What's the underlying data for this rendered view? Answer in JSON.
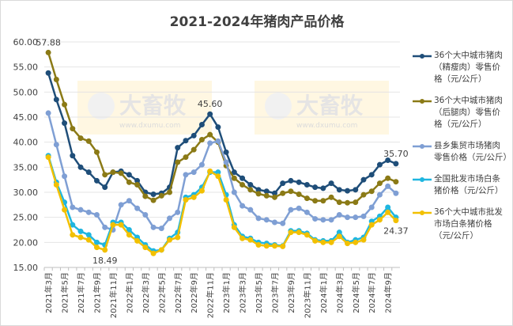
{
  "chart_data": {
    "type": "line",
    "title": "2021-2024年猪肉产品价格",
    "categories": [
      "2021年3月",
      null,
      "2021年5月",
      null,
      "2021年7月",
      null,
      "2021年9月",
      null,
      "2021年11月",
      null,
      "2022年1月",
      null,
      "2022年3月",
      null,
      "2022年5月",
      null,
      "2022年7月",
      null,
      "2022年9月",
      null,
      "2022年11月",
      null,
      "2023年1月",
      null,
      "2023年3月",
      null,
      "2023年5月",
      null,
      "2023年7月",
      null,
      "2023年9月",
      null,
      "2023年11月",
      null,
      "2024年1月",
      null,
      "2024年3月",
      null,
      "2024年5月",
      null,
      "2024年7月",
      null,
      "2024年9月",
      null
    ],
    "ylim": [
      15,
      60
    ],
    "yticks": [
      {
        "value": 15,
        "label": "15.00"
      },
      {
        "value": 20,
        "label": "20.00"
      },
      {
        "value": 25,
        "label": "25.00"
      },
      {
        "value": 30,
        "label": "30.00"
      },
      {
        "value": 35,
        "label": "35.00"
      },
      {
        "value": 40,
        "label": "40.00"
      },
      {
        "value": 45,
        "label": "45.00"
      },
      {
        "value": 50,
        "label": "50.00"
      },
      {
        "value": 55,
        "label": "55.00"
      },
      {
        "value": 60,
        "label": "60.00"
      }
    ],
    "grid": true,
    "series": [
      {
        "name": "36个大中城市猪肉（精瘦肉）零售价格（元/公斤）",
        "color": "#1f4e79",
        "values": [
          53.8,
          48.5,
          43.8,
          37.3,
          35.0,
          34.0,
          32.3,
          31.0,
          34.0,
          34.2,
          33.5,
          32.3,
          30.0,
          29.6,
          29.8,
          31.0,
          38.9,
          40.3,
          41.3,
          43.5,
          45.6,
          43.0,
          38.0,
          34.0,
          32.8,
          31.5,
          30.5,
          30.2,
          29.8,
          31.8,
          32.3,
          32.0,
          31.5,
          31.0,
          30.8,
          31.8,
          30.5,
          30.3,
          30.5,
          32.5,
          33.5,
          35.5,
          36.4,
          35.7
        ],
        "value_labels": [
          null,
          null,
          null,
          null,
          null,
          null,
          null,
          null,
          null,
          null,
          null,
          null,
          null,
          null,
          null,
          null,
          null,
          null,
          null,
          null,
          "45.60",
          null,
          null,
          null,
          null,
          null,
          null,
          null,
          null,
          null,
          null,
          null,
          null,
          null,
          null,
          null,
          null,
          null,
          null,
          null,
          null,
          null,
          null,
          "35.70"
        ]
      },
      {
        "name": "36个大中城市猪肉（后腿肉）零售价格（元/公斤）",
        "color": "#8b7a16",
        "values": [
          57.88,
          52.5,
          47.5,
          42.7,
          40.8,
          40.2,
          38.0,
          33.5,
          34.0,
          33.8,
          32.0,
          31.5,
          29.2,
          28.4,
          29.3,
          30.0,
          36.0,
          37.0,
          38.5,
          40.5,
          41.5,
          40.0,
          35.3,
          32.8,
          31.5,
          30.5,
          29.7,
          29.3,
          29.0,
          29.8,
          30.2,
          29.6,
          28.8,
          28.3,
          28.3,
          29.0,
          28.0,
          27.9,
          28.0,
          29.5,
          30.2,
          31.8,
          32.8,
          32.1
        ],
        "value_labels": [
          "57.88",
          null,
          null,
          null,
          null,
          null,
          null,
          null,
          null,
          null,
          null,
          null,
          null,
          null,
          null,
          null,
          null,
          null,
          null,
          null,
          null,
          null,
          null,
          null,
          null,
          null,
          null,
          null,
          null,
          null,
          null,
          null,
          null,
          null,
          null,
          null,
          null,
          null,
          null,
          null,
          null,
          null,
          null,
          null
        ]
      },
      {
        "name": "县乡集贸市场猪肉零售价格（元/公斤）",
        "color": "#7f9fd4",
        "values": [
          45.8,
          39.5,
          33.2,
          27.0,
          26.5,
          26.0,
          25.5,
          23.0,
          22.5,
          27.5,
          28.3,
          26.8,
          25.5,
          23.0,
          22.8,
          24.8,
          26.0,
          33.5,
          34.0,
          35.5,
          39.8,
          40.2,
          36.0,
          30.0,
          27.3,
          26.5,
          24.8,
          24.5,
          24.0,
          23.8,
          26.5,
          26.8,
          26.0,
          24.7,
          24.5,
          24.5,
          25.5,
          25.0,
          25.0,
          25.2,
          27.0,
          29.5,
          31.2,
          29.8
        ]
      },
      {
        "name": "全国批发市场白条猪价格（元/公斤）",
        "color": "#1fb6e0",
        "values": [
          37.3,
          32.0,
          28.0,
          23.5,
          22.2,
          21.5,
          20.0,
          19.5,
          24.0,
          24.0,
          22.5,
          21.0,
          19.5,
          18.3,
          18.5,
          20.8,
          22.0,
          29.0,
          29.5,
          31.0,
          34.0,
          34.0,
          29.5,
          23.5,
          21.2,
          20.8,
          20.0,
          19.8,
          19.5,
          19.3,
          22.3,
          22.3,
          21.8,
          20.5,
          20.3,
          20.3,
          22.0,
          20.0,
          20.5,
          21.0,
          24.2,
          25.2,
          27.0,
          25.0
        ]
      },
      {
        "name": "36个大中城市批发市场白条猪价格（元/公斤）",
        "color": "#f2c000",
        "values": [
          37.0,
          31.5,
          26.5,
          21.5,
          21.0,
          20.5,
          19.0,
          18.49,
          23.5,
          23.5,
          21.5,
          20.3,
          19.0,
          17.8,
          18.5,
          20.5,
          21.0,
          28.5,
          29.0,
          30.3,
          34.2,
          33.2,
          28.5,
          23.0,
          20.8,
          20.5,
          19.5,
          19.3,
          19.3,
          19.2,
          22.0,
          22.0,
          21.5,
          20.3,
          20.0,
          20.0,
          21.2,
          19.8,
          20.0,
          20.5,
          23.5,
          24.5,
          26.0,
          24.37
        ],
        "value_labels": [
          null,
          null,
          null,
          null,
          null,
          null,
          null,
          "18.49",
          null,
          null,
          null,
          null,
          null,
          null,
          null,
          null,
          null,
          null,
          null,
          null,
          null,
          null,
          null,
          null,
          null,
          null,
          null,
          null,
          null,
          null,
          null,
          null,
          null,
          null,
          null,
          null,
          null,
          null,
          null,
          null,
          null,
          null,
          null,
          "24.37"
        ]
      }
    ],
    "watermark": {
      "brand": "大畜牧",
      "url": "www.dxumu.com"
    }
  }
}
